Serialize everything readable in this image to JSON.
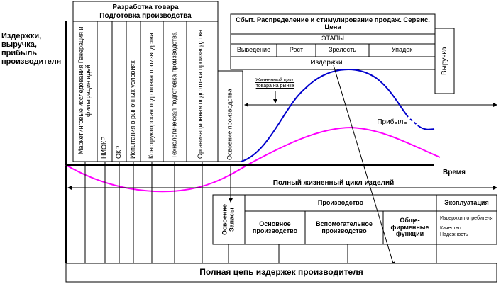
{
  "axis": {
    "y_label": "Издержки, выручка, прибыль производителя",
    "x_label": "Время"
  },
  "development": {
    "title": "Разработка товара",
    "subtitle": "Подготовка производства",
    "steps": [
      "Маркетинговые исследования Генерация и фильтрация идей",
      "НИОКР",
      "ОКР",
      "Испытания в рыночных условиях",
      "Конструкторская подготовка производства",
      "Технологическая подготовка производства",
      "Организационная подготовка производства"
    ]
  },
  "mastering": "Освоение производства",
  "market": {
    "title": "Сбыт. Распределение и стимулирование продаж. Сервис. Цена",
    "stages_label": "ЭТАПЫ",
    "stages": [
      "Выведение",
      "Рост",
      "Зрелость",
      "Упадок"
    ],
    "revenue": "Выручка",
    "costs": "Издержки",
    "lifecycle": "Жизненный цикл товара на рынке",
    "profit": "Прибыль"
  },
  "full_cycle": "Полный жизненный цикл изделий",
  "production": {
    "mastering": "Освоение Запасы",
    "title": "Производство",
    "columns": [
      "Основное производство",
      "Вспомогательное производство",
      "Обще-фирменные функции"
    ],
    "exploitation": {
      "title": "Эксплуатация",
      "items": [
        "Издержки потребителя",
        "Качество",
        "Надежность"
      ]
    }
  },
  "footer": "Полная цепь издержек производителя"
}
